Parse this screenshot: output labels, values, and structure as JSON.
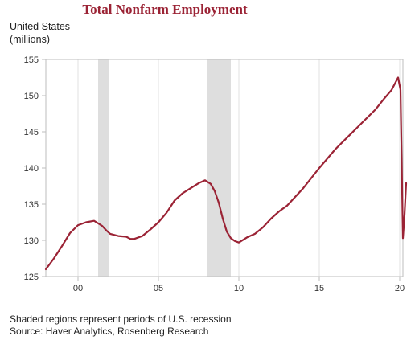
{
  "chart_data": {
    "type": "line",
    "title": "Total Nonfarm Employment",
    "ylabel_lines": [
      "United States",
      "(millions)"
    ],
    "ylim": [
      125,
      155
    ],
    "yticks": [
      125,
      130,
      135,
      140,
      145,
      150,
      155
    ],
    "xlim": [
      1998.0,
      2020.2
    ],
    "xticks": [
      {
        "value": 2000,
        "label": "00"
      },
      {
        "value": 2005,
        "label": "05"
      },
      {
        "value": 2010,
        "label": "10"
      },
      {
        "value": 2015,
        "label": "15"
      },
      {
        "value": 2020,
        "label": "20"
      }
    ],
    "grid": "vertical",
    "recessions": [
      {
        "start": 2001.25,
        "end": 2001.9
      },
      {
        "start": 2008.0,
        "end": 2009.5
      }
    ],
    "series": [
      {
        "color": "#9b2335",
        "x": [
          1998.0,
          1998.5,
          1999.0,
          1999.5,
          2000.0,
          2000.5,
          2001.0,
          2001.5,
          2001.75,
          2002.0,
          2002.5,
          2003.0,
          2003.25,
          2003.5,
          2004.0,
          2004.5,
          2005.0,
          2005.5,
          2006.0,
          2006.5,
          2007.0,
          2007.5,
          2007.9,
          2008.25,
          2008.5,
          2008.75,
          2009.0,
          2009.25,
          2009.5,
          2009.75,
          2010.0,
          2010.5,
          2011.0,
          2011.5,
          2012.0,
          2012.5,
          2013.0,
          2013.5,
          2014.0,
          2014.5,
          2015.0,
          2015.5,
          2016.0,
          2016.5,
          2017.0,
          2017.5,
          2018.0,
          2018.5,
          2019.0,
          2019.5,
          2019.9,
          2020.05,
          2020.13,
          2020.2,
          2020.3,
          2020.4
        ],
        "y": [
          126.0,
          127.5,
          129.2,
          131.0,
          132.1,
          132.5,
          132.7,
          132.0,
          131.4,
          130.9,
          130.6,
          130.5,
          130.2,
          130.2,
          130.6,
          131.5,
          132.5,
          133.8,
          135.5,
          136.5,
          137.2,
          137.9,
          138.3,
          137.8,
          136.8,
          135.2,
          133.0,
          131.2,
          130.3,
          129.9,
          129.7,
          130.4,
          130.9,
          131.8,
          133.0,
          134.0,
          134.8,
          136.0,
          137.2,
          138.6,
          140.0,
          141.3,
          142.6,
          143.7,
          144.8,
          145.9,
          147.0,
          148.1,
          149.5,
          150.8,
          152.5,
          150.8,
          140.0,
          130.3,
          133.5,
          137.9
        ]
      }
    ]
  },
  "footnotes": {
    "note": "Shaded regions represent periods of U.S. recession",
    "source": "Source: Haver Analytics, Rosenberg Research"
  },
  "colors": {
    "line": "#9b2335",
    "title": "#9b2335",
    "recession": "#dedede",
    "grid": "#e2e2e2",
    "axis": "#bdbdbd"
  }
}
